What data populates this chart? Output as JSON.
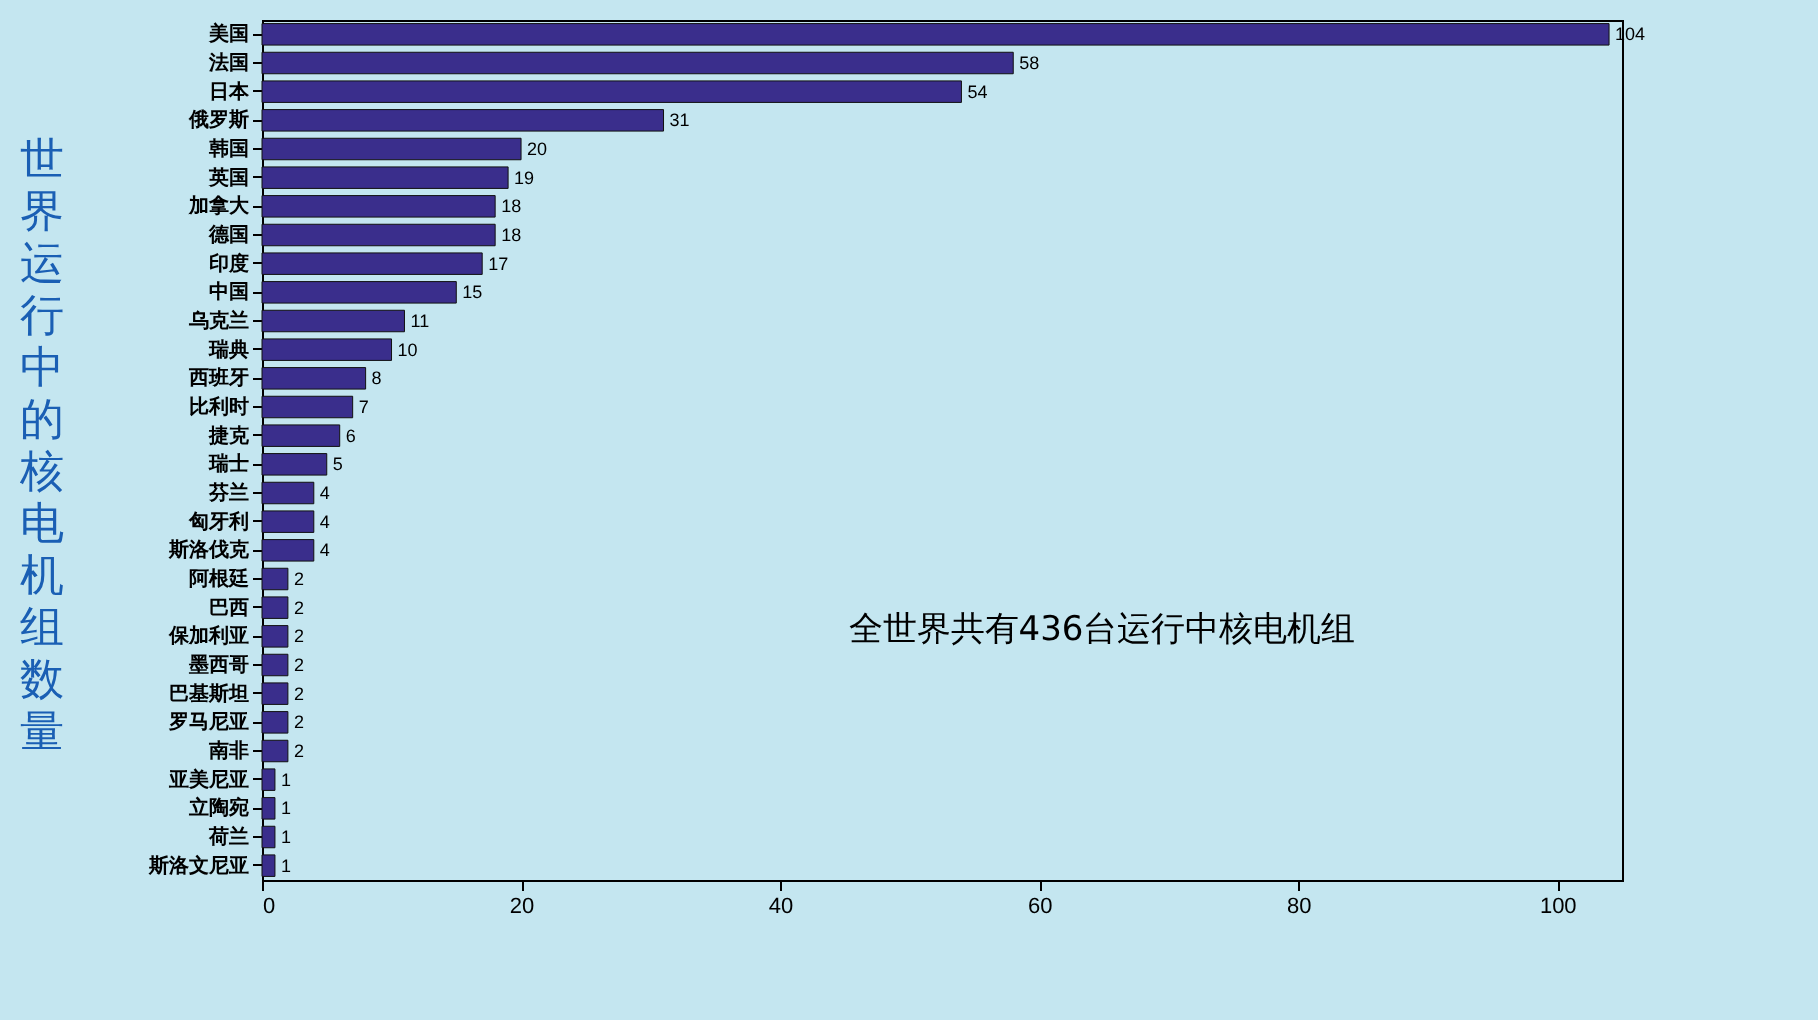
{
  "chart_data": {
    "type": "bar",
    "orientation": "horizontal",
    "ylabel": "世界运行中的核电机组数量",
    "categories": [
      "美国",
      "法国",
      "日本",
      "俄罗斯",
      "韩国",
      "英国",
      "加拿大",
      "德国",
      "印度",
      "中国",
      "乌克兰",
      "瑞典",
      "西班牙",
      "比利时",
      "捷克",
      "瑞士",
      "芬兰",
      "匈牙利",
      "斯洛伐克",
      "阿根廷",
      "巴西",
      "保加利亚",
      "墨西哥",
      "巴基斯坦",
      "罗马尼亚",
      "南非",
      "亚美尼亚",
      "立陶宛",
      "荷兰",
      "斯洛文尼亚"
    ],
    "values": [
      104,
      58,
      54,
      31,
      20,
      19,
      18,
      18,
      17,
      15,
      11,
      10,
      8,
      7,
      6,
      5,
      4,
      4,
      4,
      2,
      2,
      2,
      2,
      2,
      2,
      2,
      1,
      1,
      1,
      1
    ],
    "color": "#3a2e8c",
    "data_labels": true,
    "xlim": [
      0,
      105
    ],
    "xticks": [
      0,
      20,
      40,
      60,
      80,
      100
    ],
    "grid": false,
    "annotations": [
      "全世界共有436台运行中核电机组"
    ]
  }
}
